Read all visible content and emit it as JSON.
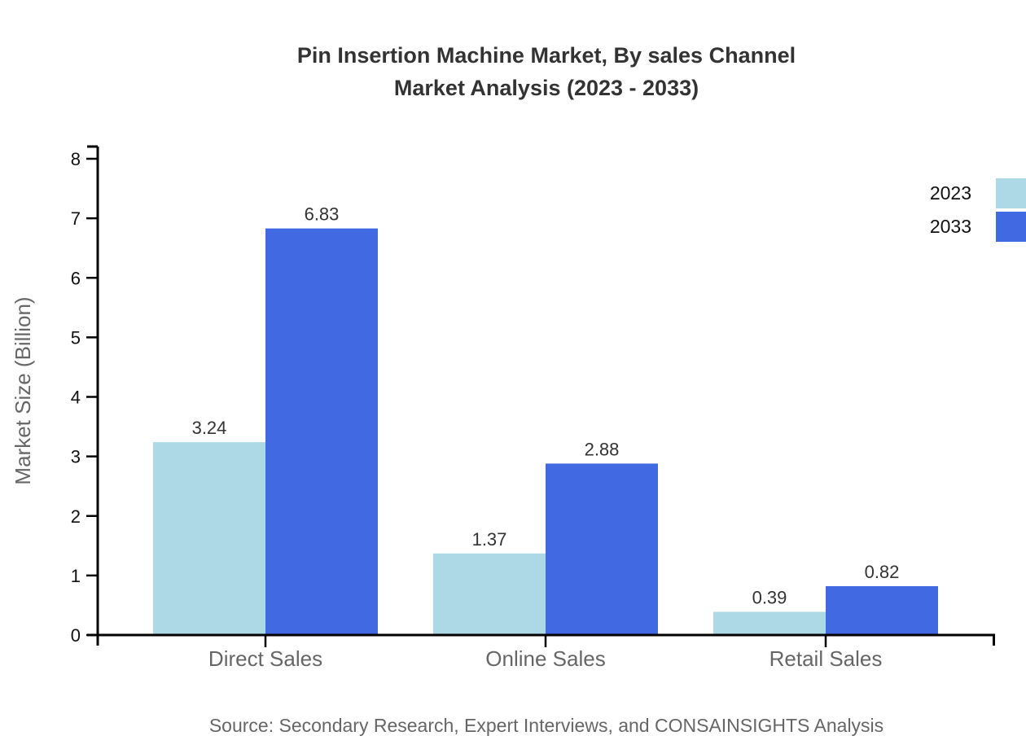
{
  "title": {
    "line1": "Pin Insertion Machine Market, By sales Channel",
    "line2": "Market Analysis (2023 - 2033)"
  },
  "legend": [
    {
      "label": "2023",
      "color": "#ADD8E6"
    },
    {
      "label": "2033",
      "color": "#4169E1"
    }
  ],
  "source": "Source: Secondary Research, Expert Interviews, and CONSAINSIGHTS Analysis",
  "chart_data": {
    "type": "bar",
    "title": "Pin Insertion Machine Market, By sales Channel Market Analysis (2023 - 2033)",
    "categories": [
      "Direct Sales",
      "Online Sales",
      "Retail Sales"
    ],
    "series": [
      {
        "name": "2023",
        "color": "#ADD8E6",
        "values": [
          3.24,
          1.37,
          0.39
        ]
      },
      {
        "name": "2033",
        "color": "#4169E1",
        "values": [
          6.83,
          2.88,
          0.82
        ]
      }
    ],
    "value_labels": [
      "3.24",
      "6.83",
      "1.37",
      "2.88",
      "0.39",
      "0.82"
    ],
    "xlabel": "",
    "ylabel": "Market Size (Billion)",
    "ylim": [
      0,
      8
    ],
    "yticks": [
      0,
      1,
      2,
      3,
      4,
      5,
      6,
      7,
      8
    ],
    "grid": false,
    "legend_position": "top-right",
    "axis_color": "#000000",
    "category_label_color": "#666666",
    "value_label_color": "#333333"
  }
}
